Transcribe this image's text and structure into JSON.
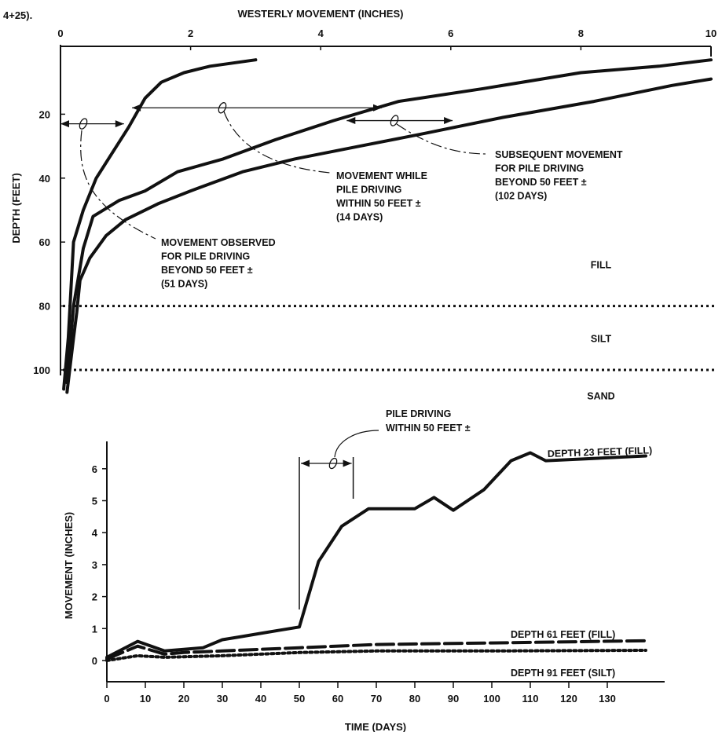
{
  "fragment_label": "4+25).",
  "colors": {
    "ink": "#111111",
    "background": "#ffffff"
  },
  "chart_data": [
    {
      "type": "line",
      "title": "",
      "xlabel": "WESTERLY MOVEMENT (INCHES)",
      "ylabel": "DEPTH (FEET)",
      "x_axis_position": "top",
      "y_inverted": true,
      "xlim": [
        0,
        10
      ],
      "ylim": [
        0,
        110
      ],
      "x_ticks": [
        "0",
        "2",
        "4",
        "6",
        "8",
        "10"
      ],
      "y_ticks": [
        "20",
        "40",
        "60",
        "80",
        "100"
      ],
      "series": [
        {
          "x": [
            0.05,
            0.12,
            0.2,
            0.35,
            0.55,
            0.8,
            1.05,
            1.3,
            1.55,
            1.9,
            2.3,
            3.0
          ],
          "y": [
            106,
            90,
            60,
            50,
            40,
            32,
            24,
            15,
            10,
            7,
            5,
            3
          ]
        },
        {
          "x": [
            0.1,
            0.2,
            0.35,
            0.5,
            0.9,
            1.3,
            1.8,
            2.5,
            3.3,
            4.2,
            5.2,
            6.5,
            8.0,
            9.2,
            10.0
          ],
          "y": [
            104,
            80,
            62,
            52,
            47,
            44,
            38,
            34,
            28,
            22,
            16,
            12,
            7,
            5,
            3
          ]
        },
        {
          "x": [
            0.1,
            0.2,
            0.25,
            0.3,
            0.45,
            0.7,
            1.0,
            1.5,
            2.0,
            2.8,
            3.6,
            4.6,
            5.6,
            6.8,
            8.2,
            9.4,
            10.0
          ],
          "y": [
            107,
            90,
            82,
            72,
            65,
            58,
            53,
            48,
            44,
            38,
            34,
            30,
            26,
            21,
            16,
            11,
            9
          ]
        }
      ],
      "layer_boundaries": [
        {
          "depth": 80,
          "style": "dotted"
        },
        {
          "depth": 100,
          "style": "dotted"
        }
      ],
      "layer_labels": [
        {
          "text": "FILL",
          "depth": 67
        },
        {
          "text": "SILT",
          "depth": 90
        },
        {
          "text": "SAND",
          "depth": 108
        }
      ],
      "annotations": [
        {
          "id": "a51",
          "lines": [
            "MOVEMENT OBSERVED",
            "FOR PILE DRIVING",
            "BEYOND 50 FEET ±",
            "(51 DAYS)"
          ],
          "span_x": [
            0.0,
            1.0
          ],
          "depth": 23
        },
        {
          "id": "a14",
          "lines": [
            "MOVEMENT WHILE",
            "PILE DRIVING",
            "WITHIN 50 FEET ±",
            "(14 DAYS)"
          ],
          "span_x": [
            1.1,
            5.0
          ],
          "depth": 18
        },
        {
          "id": "a102",
          "lines": [
            "SUBSEQUENT MOVEMENT",
            "FOR PILE DRIVING",
            "BEYOND 50 FEET ±",
            "(102 DAYS)"
          ],
          "span_x": [
            4.4,
            6.1
          ],
          "depth": 22
        }
      ]
    },
    {
      "type": "line",
      "title": "",
      "xlabel": "TIME (DAYS)",
      "ylabel": "MOVEMENT (INCHES)",
      "xlim": [
        0,
        140
      ],
      "ylim": [
        -0.6,
        6.8
      ],
      "x_ticks": [
        "0",
        "10",
        "20",
        "30",
        "40",
        "50",
        "60",
        "70",
        "80",
        "90",
        "100",
        "110",
        "120",
        "130"
      ],
      "y_ticks": [
        "0",
        "1",
        "2",
        "3",
        "4",
        "5",
        "6"
      ],
      "series": [
        {
          "name": "DEPTH 23 FEET (FILL)",
          "style": "solid",
          "x": [
            0,
            8,
            15,
            20,
            25,
            30,
            35,
            40,
            45,
            50,
            55,
            61,
            68,
            73,
            80,
            85,
            90,
            98,
            105,
            110,
            114,
            140
          ],
          "y": [
            0.1,
            0.6,
            0.3,
            0.35,
            0.4,
            0.65,
            0.75,
            0.85,
            0.95,
            1.05,
            3.1,
            4.2,
            4.75,
            4.75,
            4.75,
            5.1,
            4.7,
            5.35,
            6.25,
            6.5,
            6.25,
            6.4
          ]
        },
        {
          "name": "DEPTH 61 FEET (FILL)",
          "style": "dashed",
          "x": [
            0,
            8,
            15,
            20,
            30,
            50,
            70,
            100,
            140
          ],
          "y": [
            0.05,
            0.45,
            0.2,
            0.25,
            0.3,
            0.4,
            0.5,
            0.55,
            0.62
          ]
        },
        {
          "name": "DEPTH 91 FEET (SILT)",
          "style": "dotted",
          "x": [
            0,
            8,
            15,
            30,
            50,
            70,
            100,
            140
          ],
          "y": [
            0.0,
            0.15,
            0.1,
            0.15,
            0.25,
            0.3,
            0.3,
            0.32
          ]
        }
      ],
      "event_marker": {
        "x": 50
      },
      "annotations": [
        {
          "id": "pd",
          "lines": [
            "PILE DRIVING",
            "WITHIN 50 FEET ±"
          ],
          "span_x": [
            50,
            64
          ]
        }
      ]
    }
  ]
}
